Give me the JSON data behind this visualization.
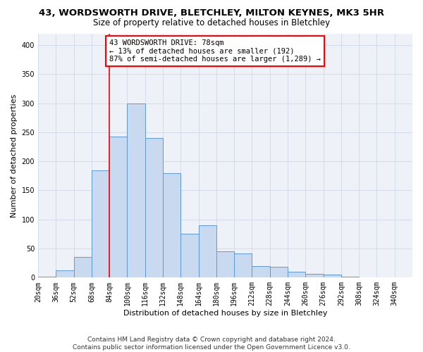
{
  "title": "43, WORDSWORTH DRIVE, BLETCHLEY, MILTON KEYNES, MK3 5HR",
  "subtitle": "Size of property relative to detached houses in Bletchley",
  "xlabel": "Distribution of detached houses by size in Bletchley",
  "ylabel": "Number of detached properties",
  "bar_color": "#c8d9f0",
  "bar_edge_color": "#5b9bd5",
  "bin_labels": [
    "20sqm",
    "36sqm",
    "52sqm",
    "68sqm",
    "84sqm",
    "100sqm",
    "116sqm",
    "132sqm",
    "148sqm",
    "164sqm",
    "180sqm",
    "196sqm",
    "212sqm",
    "228sqm",
    "244sqm",
    "260sqm",
    "276sqm",
    "292sqm",
    "308sqm",
    "324sqm",
    "340sqm"
  ],
  "bar_heights": [
    2,
    12,
    35,
    185,
    243,
    300,
    240,
    180,
    75,
    90,
    45,
    42,
    20,
    18,
    10,
    6,
    5,
    2,
    1,
    0,
    1
  ],
  "ylim": [
    0,
    420
  ],
  "yticks": [
    0,
    50,
    100,
    150,
    200,
    250,
    300,
    350,
    400
  ],
  "vline_color": "red",
  "annotation_text": "43 WORDSWORTH DRIVE: 78sqm\n← 13% of detached houses are smaller (192)\n87% of semi-detached houses are larger (1,289) →",
  "annotation_box_color": "white",
  "annotation_box_edge": "red",
  "grid_color": "#d0d8e8",
  "bg_color": "#eef2f8",
  "footer": "Contains HM Land Registry data © Crown copyright and database right 2024.\nContains public sector information licensed under the Open Government Licence v3.0.",
  "title_fontsize": 9.5,
  "subtitle_fontsize": 8.5,
  "xlabel_fontsize": 8,
  "ylabel_fontsize": 8,
  "annot_fontsize": 7.5,
  "tick_fontsize": 7,
  "footer_fontsize": 6.5
}
